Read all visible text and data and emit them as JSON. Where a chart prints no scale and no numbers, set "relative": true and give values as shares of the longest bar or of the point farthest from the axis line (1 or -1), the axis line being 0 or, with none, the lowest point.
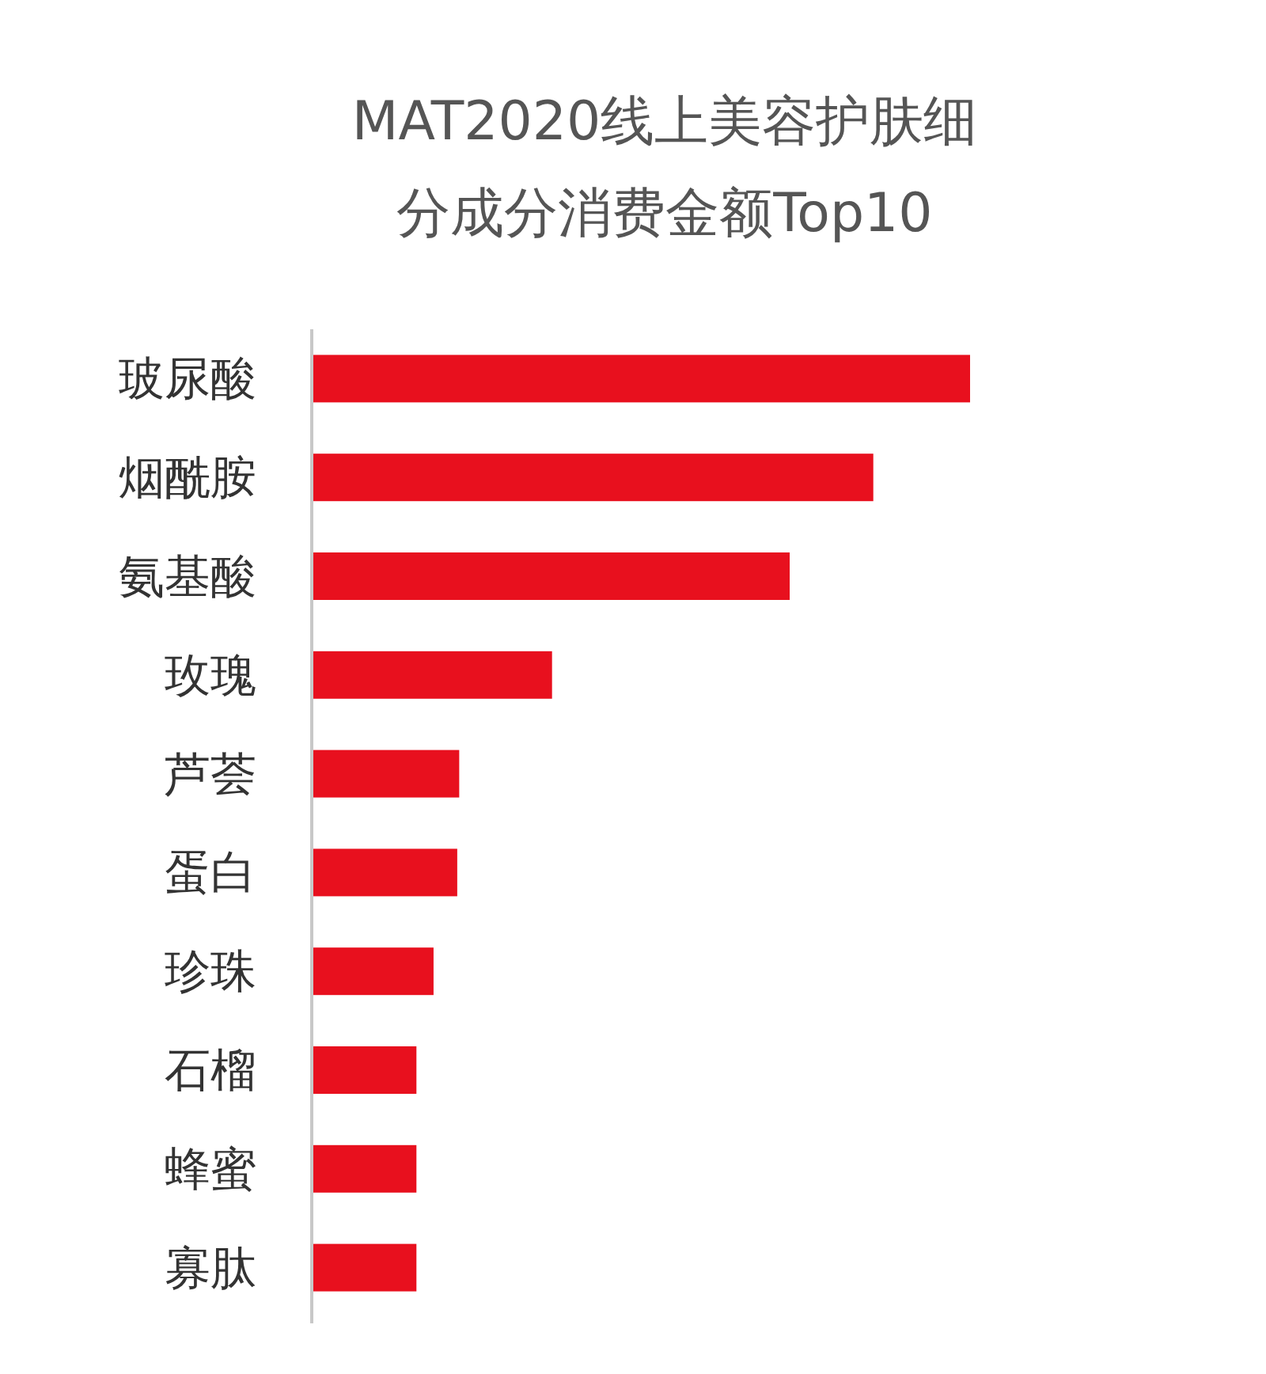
{
  "chart_data": {
    "type": "bar",
    "orientation": "horizontal",
    "relative": true,
    "title": "MAT2020线上美容护肤细分成分消费金额Top10",
    "categories": [
      "玻尿酸",
      "烟酰胺",
      "氨基酸",
      "玫瑰",
      "芦荟",
      "蛋白",
      "珍珠",
      "石榴",
      "蜂蜜",
      "寡肽"
    ],
    "values": [
      1,
      0.853,
      0.726,
      0.365,
      0.224,
      0.221,
      0.185,
      0.159,
      0.159,
      0.159
    ],
    "color": "#e8101e"
  }
}
